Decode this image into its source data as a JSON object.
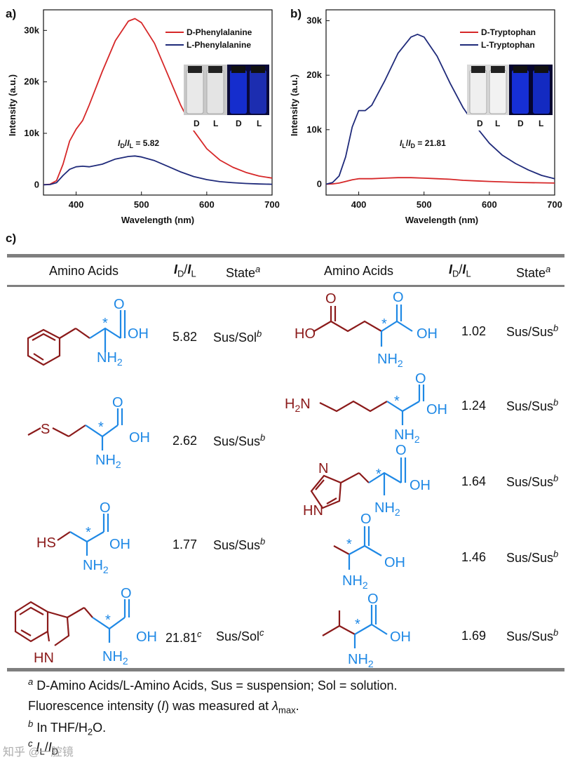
{
  "panels": {
    "a": {
      "label": "a)",
      "ylabel": "Intensity (a.u.)",
      "xlabel": "Wavelength (nm)",
      "xticks": [
        "400",
        "500",
        "600",
        "700"
      ],
      "yticks": [
        "0",
        "10k",
        "20k",
        "30k"
      ],
      "legend": [
        "D-Phenylalanine",
        "L-Phenylalanine"
      ],
      "ratio_num": "I",
      "ratio_num_sub": "D",
      "ratio_den": "I",
      "ratio_den_sub": "L",
      "ratio_value": " = 5.82",
      "photo_labels": [
        "D",
        "L",
        "D",
        "L"
      ]
    },
    "b": {
      "label": "b)",
      "ylabel": "Intensity (a.u.)",
      "xlabel": "Wavelength (nm)",
      "xticks": [
        "400",
        "500",
        "600",
        "700"
      ],
      "yticks": [
        "0",
        "10k",
        "20k",
        "30k"
      ],
      "legend": [
        "D-Tryptophan",
        "L-Tryptophan"
      ],
      "ratio_num": "I",
      "ratio_num_sub": "L",
      "ratio_den": "I",
      "ratio_den_sub": "D",
      "ratio_value": " = 21.81",
      "photo_labels": [
        "D",
        "L",
        "D",
        "L"
      ]
    },
    "c": {
      "label": "c)"
    }
  },
  "colors": {
    "red": "#d62728",
    "navy": "#1f2a7a",
    "blue": "#1e88e5",
    "maroon": "#8b1a1a"
  },
  "chart_data": [
    {
      "type": "line",
      "title": "",
      "xlabel": "Wavelength (nm)",
      "ylabel": "Intensity (a.u.)",
      "xlim": [
        350,
        700
      ],
      "ylim": [
        -2000,
        34000
      ],
      "series": [
        {
          "name": "D-Phenylalanine",
          "color": "#d62728",
          "x": [
            350,
            360,
            370,
            380,
            390,
            400,
            410,
            420,
            440,
            460,
            480,
            490,
            500,
            520,
            540,
            560,
            580,
            600,
            620,
            640,
            660,
            680,
            700
          ],
          "y": [
            0,
            100,
            800,
            4000,
            8500,
            10800,
            12500,
            15500,
            22000,
            28000,
            31800,
            32300,
            31500,
            27500,
            21500,
            15500,
            10500,
            7000,
            4800,
            3400,
            2400,
            1700,
            1300
          ]
        },
        {
          "name": "L-Phenylalanine",
          "color": "#1f2a7a",
          "x": [
            350,
            360,
            370,
            380,
            390,
            400,
            410,
            420,
            440,
            460,
            480,
            490,
            500,
            520,
            540,
            560,
            580,
            600,
            620,
            640,
            660,
            680,
            700
          ],
          "y": [
            0,
            50,
            400,
            1800,
            3000,
            3500,
            3600,
            3500,
            4000,
            5000,
            5500,
            5600,
            5400,
            4700,
            3600,
            2500,
            1600,
            1000,
            600,
            400,
            250,
            150,
            100
          ]
        }
      ]
    },
    {
      "type": "line",
      "title": "",
      "xlabel": "Wavelength (nm)",
      "ylabel": "Intensity (a.u.)",
      "xlim": [
        350,
        700
      ],
      "ylim": [
        -2000,
        32000
      ],
      "series": [
        {
          "name": "D-Tryptophan",
          "color": "#d62728",
          "x": [
            350,
            360,
            370,
            380,
            390,
            400,
            420,
            440,
            460,
            480,
            500,
            520,
            540,
            560,
            580,
            600,
            650,
            700
          ],
          "y": [
            0,
            50,
            200,
            500,
            800,
            1000,
            1000,
            1100,
            1200,
            1200,
            1100,
            1000,
            900,
            700,
            600,
            500,
            300,
            200
          ]
        },
        {
          "name": "L-Tryptophan",
          "color": "#1f2a7a",
          "x": [
            350,
            360,
            370,
            380,
            390,
            400,
            410,
            420,
            440,
            460,
            480,
            490,
            500,
            520,
            540,
            560,
            580,
            600,
            620,
            640,
            660,
            680,
            700
          ],
          "y": [
            0,
            300,
            1500,
            5000,
            10500,
            13500,
            13500,
            14500,
            19000,
            24000,
            27000,
            27500,
            27000,
            23500,
            18500,
            14000,
            10500,
            7500,
            5300,
            3800,
            2600,
            1600,
            1000
          ]
        }
      ]
    }
  ],
  "table": {
    "headers": {
      "amino_acids": "Amino Acids",
      "ratio_I": "I",
      "ratio_sub_D": "D",
      "ratio_slash": "/",
      "ratio_sub_L": "L",
      "state": "State",
      "state_sup": "a"
    },
    "left_rows": [
      {
        "ratio": "5.82",
        "ratio_sup": "",
        "state": "Sus/Sol",
        "state_sup": "b"
      },
      {
        "ratio": "2.62",
        "ratio_sup": "",
        "state": "Sus/Sus",
        "state_sup": "b"
      },
      {
        "ratio": "1.77",
        "ratio_sup": "",
        "state": "Sus/Sus",
        "state_sup": "b"
      },
      {
        "ratio": "21.81",
        "ratio_sup": "c",
        "state": "Sus/Sol",
        "state_sup": "c"
      }
    ],
    "right_rows": [
      {
        "ratio": "1.02",
        "state": "Sus/Sus",
        "state_sup": "b"
      },
      {
        "ratio": "1.24",
        "state": "Sus/Sus",
        "state_sup": "b"
      },
      {
        "ratio": "1.64",
        "state": "Sus/Sus",
        "state_sup": "b"
      },
      {
        "ratio": "1.46",
        "state": "Sus/Sus",
        "state_sup": "b"
      },
      {
        "ratio": "1.69",
        "state": "Sus/Sus",
        "state_sup": "b"
      }
    ],
    "chem": {
      "OH": "OH",
      "O": "O",
      "NH": "NH",
      "two": "2",
      "HO": "HO",
      "H": "H",
      "S": "S",
      "HS": "HS",
      "N": "N",
      "HN": "HN",
      "star": "*"
    }
  },
  "footnotes": {
    "a_sup": "a",
    "a_text": " D-Amino Acids/L-Amino Acids, Sus = suspension; Sol = solution.",
    "fl_text_1": "Fluorescence intensity (",
    "fl_I": "I",
    "fl_text_2": ") was measured at ",
    "fl_lambda": "λ",
    "fl_sub": "max",
    "fl_end": ".",
    "b_sup": "b",
    "b_text_1": " In THF/H",
    "b_sub": "2",
    "b_text_2": "O.",
    "c_sup": "c",
    "c_I1": "I",
    "c_sub1": "L",
    "c_slash": "/",
    "c_I2": "I",
    "c_sub2": "D"
  },
  "watermark": "知乎 @一腔镜"
}
